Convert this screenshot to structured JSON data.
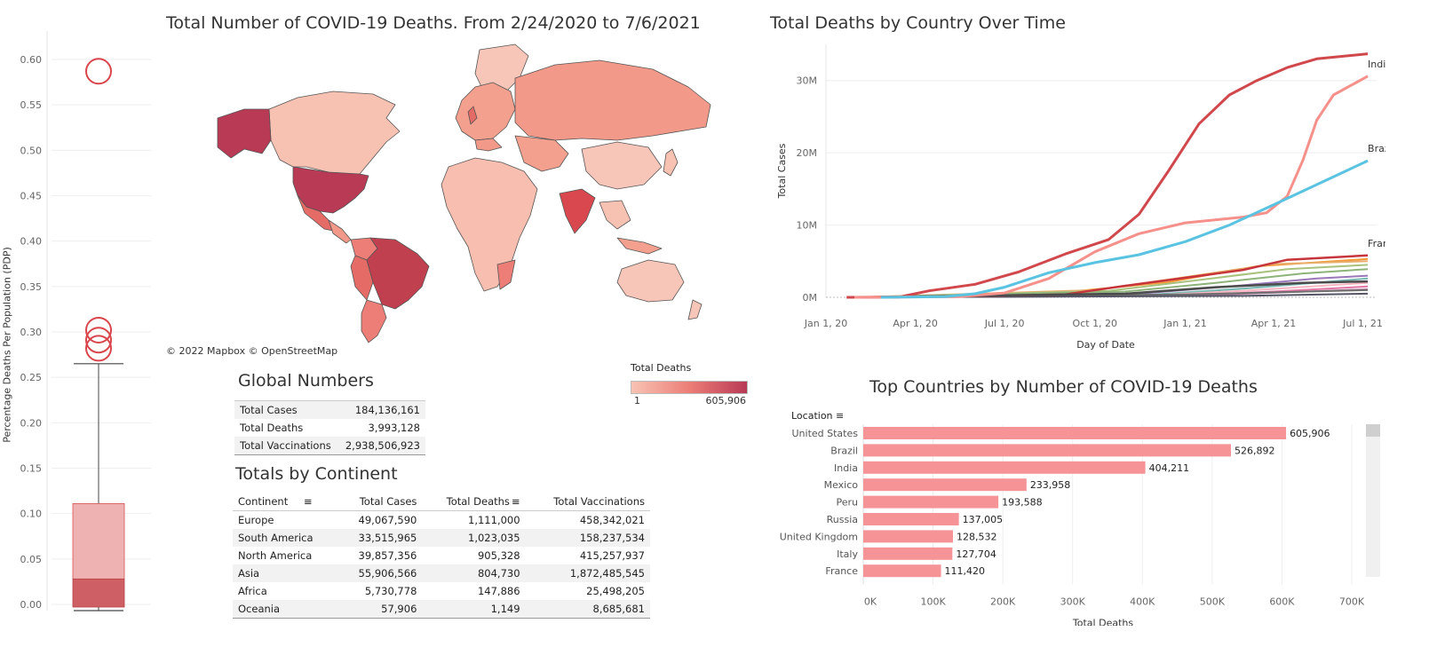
{
  "map": {
    "title": "Total Number of  COVID-19 Deaths. From 2/24/2020 to 7/6/2021",
    "attribution": "© 2022 Mapbox  © OpenStreetMap",
    "legend": {
      "title": "Total Deaths",
      "min_label": "1",
      "max_label": "605,906",
      "color_low": "#f8c3b3",
      "color_high": "#b83a55"
    }
  },
  "boxplot": {
    "ylabel": "Percentage Deaths Per Population (PDP)",
    "yticks": [
      "0.00",
      "0.05",
      "0.10",
      "0.15",
      "0.20",
      "0.25",
      "0.30",
      "0.35",
      "0.40",
      "0.45",
      "0.50",
      "0.55",
      "0.60"
    ],
    "outliers": [
      0.587,
      0.302,
      0.291,
      0.282
    ],
    "whisker_low": 0.0,
    "q1": 0.0,
    "median": 0.028,
    "q3": 0.111,
    "whisker_high": 0.265,
    "ylim": [
      0,
      0.6
    ]
  },
  "global_numbers": {
    "title": "Global Numbers",
    "rows": [
      {
        "label": "Total Cases",
        "value": "184,136,161"
      },
      {
        "label": "Total Deaths",
        "value": "3,993,128"
      },
      {
        "label": "Total Vaccinations",
        "value": "2,938,506,923"
      }
    ]
  },
  "continents": {
    "title": "Totals by Continent",
    "headers": [
      "Continent",
      "Total Cases",
      "Total Deaths",
      "Total Vaccinations"
    ],
    "rows": [
      [
        "Europe",
        "49,067,590",
        "1,111,000",
        "458,342,021"
      ],
      [
        "South America",
        "33,515,965",
        "1,023,035",
        "158,237,534"
      ],
      [
        "North America",
        "39,857,356",
        "905,328",
        "415,257,937"
      ],
      [
        "Asia",
        "55,906,566",
        "804,730",
        "1,872,485,545"
      ],
      [
        "Africa",
        "5,730,778",
        "147,886",
        "25,498,205"
      ],
      [
        "Oceania",
        "57,906",
        "1,149",
        "8,685,681"
      ]
    ]
  },
  "chart_data": [
    {
      "type": "box",
      "title": "",
      "ylabel": "Percentage Deaths Per Population (PDP)",
      "ylim": [
        0,
        0.6
      ],
      "min": 0.0,
      "q1": 0.0,
      "median": 0.028,
      "q3": 0.111,
      "max": 0.265,
      "outliers": [
        0.587,
        0.302,
        0.291,
        0.282
      ]
    },
    {
      "type": "line",
      "title": "Total Deaths by Country Over Time",
      "xlabel": "Day of Date",
      "ylabel": "Total Cases",
      "x_ticks": [
        "Jan 1, 20",
        "Apr 1, 20",
        "Jul 1, 20",
        "Oct 1, 20",
        "Jan 1, 21",
        "Apr 1, 21",
        "Jul 1, 21"
      ],
      "y_ticks": [
        "0M",
        "10M",
        "20M",
        "30M"
      ],
      "xlim": [
        "2020-01-01",
        "2021-07-15"
      ],
      "ylim": [
        0,
        35000000
      ],
      "series": [
        {
          "name": "",
          "color": "#d0484c",
          "width": 3,
          "points": [
            [
              "2020-01-22",
              0
            ],
            [
              "2020-03-15",
              20000
            ],
            [
              "2020-04-15",
              900000
            ],
            [
              "2020-06-01",
              1800000
            ],
            [
              "2020-07-15",
              3500000
            ],
            [
              "2020-09-01",
              6000000
            ],
            [
              "2020-10-15",
              8000000
            ],
            [
              "2020-11-15",
              11500000
            ],
            [
              "2020-12-15",
              17500000
            ],
            [
              "2021-01-15",
              24000000
            ],
            [
              "2021-02-15",
              28000000
            ],
            [
              "2021-03-15",
              30000000
            ],
            [
              "2021-04-15",
              31800000
            ],
            [
              "2021-05-15",
              33000000
            ],
            [
              "2021-07-06",
              33700000
            ]
          ]
        },
        {
          "name": "India",
          "color": "#f5908a",
          "width": 3,
          "points": [
            [
              "2020-01-30",
              0
            ],
            [
              "2020-05-15",
              100000
            ],
            [
              "2020-07-01",
              600000
            ],
            [
              "2020-08-15",
              2600000
            ],
            [
              "2020-10-01",
              6300000
            ],
            [
              "2020-11-15",
              8800000
            ],
            [
              "2021-01-01",
              10300000
            ],
            [
              "2021-03-01",
              11100000
            ],
            [
              "2021-03-25",
              11700000
            ],
            [
              "2021-04-15",
              14000000
            ],
            [
              "2021-05-01",
              19000000
            ],
            [
              "2021-05-15",
              24500000
            ],
            [
              "2021-06-01",
              28000000
            ],
            [
              "2021-07-06",
              30600000
            ]
          ]
        },
        {
          "name": "Brazil",
          "color": "#5ac3e2",
          "width": 3,
          "points": [
            [
              "2020-02-26",
              0
            ],
            [
              "2020-05-01",
              100000
            ],
            [
              "2020-06-01",
              500000
            ],
            [
              "2020-07-01",
              1400000
            ],
            [
              "2020-08-15",
              3400000
            ],
            [
              "2020-10-01",
              4800000
            ],
            [
              "2020-11-15",
              5900000
            ],
            [
              "2021-01-01",
              7700000
            ],
            [
              "2021-02-15",
              10000000
            ],
            [
              "2021-04-01",
              12800000
            ],
            [
              "2021-05-15",
              15600000
            ],
            [
              "2021-07-06",
              18900000
            ]
          ]
        },
        {
          "name": "France",
          "color": "#c6353b",
          "width": 2.5,
          "points": [
            [
              "2020-01-24",
              0
            ],
            [
              "2020-06-01",
              180000
            ],
            [
              "2020-09-01",
              400000
            ],
            [
              "2020-11-01",
              1600000
            ],
            [
              "2021-01-01",
              2700000
            ],
            [
              "2021-03-01",
              3800000
            ],
            [
              "2021-04-15",
              5200000
            ],
            [
              "2021-07-06",
              5800000
            ]
          ]
        },
        {
          "name": "",
          "color": "#f39a39",
          "width": 2,
          "points": [
            [
              "2020-02-01",
              0
            ],
            [
              "2020-09-01",
              700000
            ],
            [
              "2020-12-15",
              2100000
            ],
            [
              "2021-03-15",
              4300000
            ],
            [
              "2021-07-06",
              5300000
            ]
          ]
        },
        {
          "name": "",
          "color": "#e8ad6a",
          "width": 2,
          "points": [
            [
              "2020-02-01",
              0
            ],
            [
              "2020-10-01",
              1000000
            ],
            [
              "2021-01-01",
              2800000
            ],
            [
              "2021-04-01",
              4600000
            ],
            [
              "2021-07-06",
              5000000
            ]
          ]
        },
        {
          "name": "",
          "color": "#a8c27e",
          "width": 2,
          "points": [
            [
              "2020-02-01",
              0
            ],
            [
              "2020-10-15",
              900000
            ],
            [
              "2021-01-15",
              2400000
            ],
            [
              "2021-04-15",
              3900000
            ],
            [
              "2021-07-06",
              4500000
            ]
          ]
        },
        {
          "name": "",
          "color": "#8db37a",
          "width": 2,
          "points": [
            [
              "2020-02-01",
              0
            ],
            [
              "2020-11-01",
              800000
            ],
            [
              "2021-02-01",
              2000000
            ],
            [
              "2021-05-01",
              3300000
            ],
            [
              "2021-07-06",
              3900000
            ]
          ]
        },
        {
          "name": "",
          "color": "#9b78b9",
          "width": 2,
          "points": [
            [
              "2020-02-01",
              0
            ],
            [
              "2020-11-15",
              500000
            ],
            [
              "2021-02-15",
              1500000
            ],
            [
              "2021-05-15",
              2600000
            ],
            [
              "2021-07-06",
              3000000
            ]
          ]
        },
        {
          "name": "",
          "color": "#76b7b2",
          "width": 2,
          "points": [
            [
              "2020-02-01",
              0
            ],
            [
              "2020-12-01",
              400000
            ],
            [
              "2021-03-01",
              1200000
            ],
            [
              "2021-07-06",
              2600000
            ]
          ]
        },
        {
          "name": "",
          "color": "#f7b6c2",
          "width": 2,
          "points": [
            [
              "2020-02-01",
              0
            ],
            [
              "2020-12-01",
              300000
            ],
            [
              "2021-03-01",
              900000
            ],
            [
              "2021-07-06",
              2000000
            ]
          ]
        },
        {
          "name": "",
          "color": "#e377a4",
          "width": 2,
          "points": [
            [
              "2020-02-01",
              0
            ],
            [
              "2021-01-01",
              300000
            ],
            [
              "2021-04-01",
              800000
            ],
            [
              "2021-07-06",
              1500000
            ]
          ]
        },
        {
          "name": "",
          "color": "#b07aa1",
          "width": 2,
          "points": [
            [
              "2020-02-01",
              0
            ],
            [
              "2021-01-01",
              200000
            ],
            [
              "2021-07-06",
              1100000
            ]
          ]
        },
        {
          "name": "",
          "color": "#4b4b4b",
          "width": 2.5,
          "points": [
            [
              "2020-02-01",
              0
            ],
            [
              "2020-11-01",
              500000
            ],
            [
              "2021-02-01",
              1400000
            ],
            [
              "2021-05-01",
              2000000
            ],
            [
              "2021-07-06",
              2200000
            ]
          ]
        },
        {
          "name": "",
          "color": "#6f6f6f",
          "width": 2,
          "points": [
            [
              "2020-02-01",
              0
            ],
            [
              "2021-01-01",
              400000
            ],
            [
              "2021-07-06",
              1000000
            ]
          ]
        },
        {
          "name": "",
          "color": "#555566",
          "width": 2,
          "points": [
            [
              "2020-02-01",
              0
            ],
            [
              "2021-03-01",
              200000
            ],
            [
              "2021-07-06",
              500000
            ]
          ]
        }
      ],
      "annotations": [
        "India",
        "Brazil",
        "France"
      ]
    },
    {
      "type": "bar",
      "title": "Top Countries by Number of COVID-19 Deaths",
      "header": "Location",
      "xlabel": "Total Deaths",
      "x_ticks": [
        "0K",
        "100K",
        "200K",
        "300K",
        "400K",
        "500K",
        "600K",
        "700K"
      ],
      "xlim": [
        0,
        700000
      ],
      "categories": [
        "United States",
        "Brazil",
        "India",
        "Mexico",
        "Peru",
        "Russia",
        "United Kingdom",
        "Italy",
        "France"
      ],
      "values": [
        605906,
        526892,
        404211,
        233958,
        193588,
        137005,
        128532,
        127704,
        111420
      ],
      "labels": [
        "605,906",
        "526,892",
        "404,211",
        "233,958",
        "193,588",
        "137,005",
        "128,532",
        "127,704",
        "111,420"
      ],
      "color": "#f59396"
    }
  ]
}
